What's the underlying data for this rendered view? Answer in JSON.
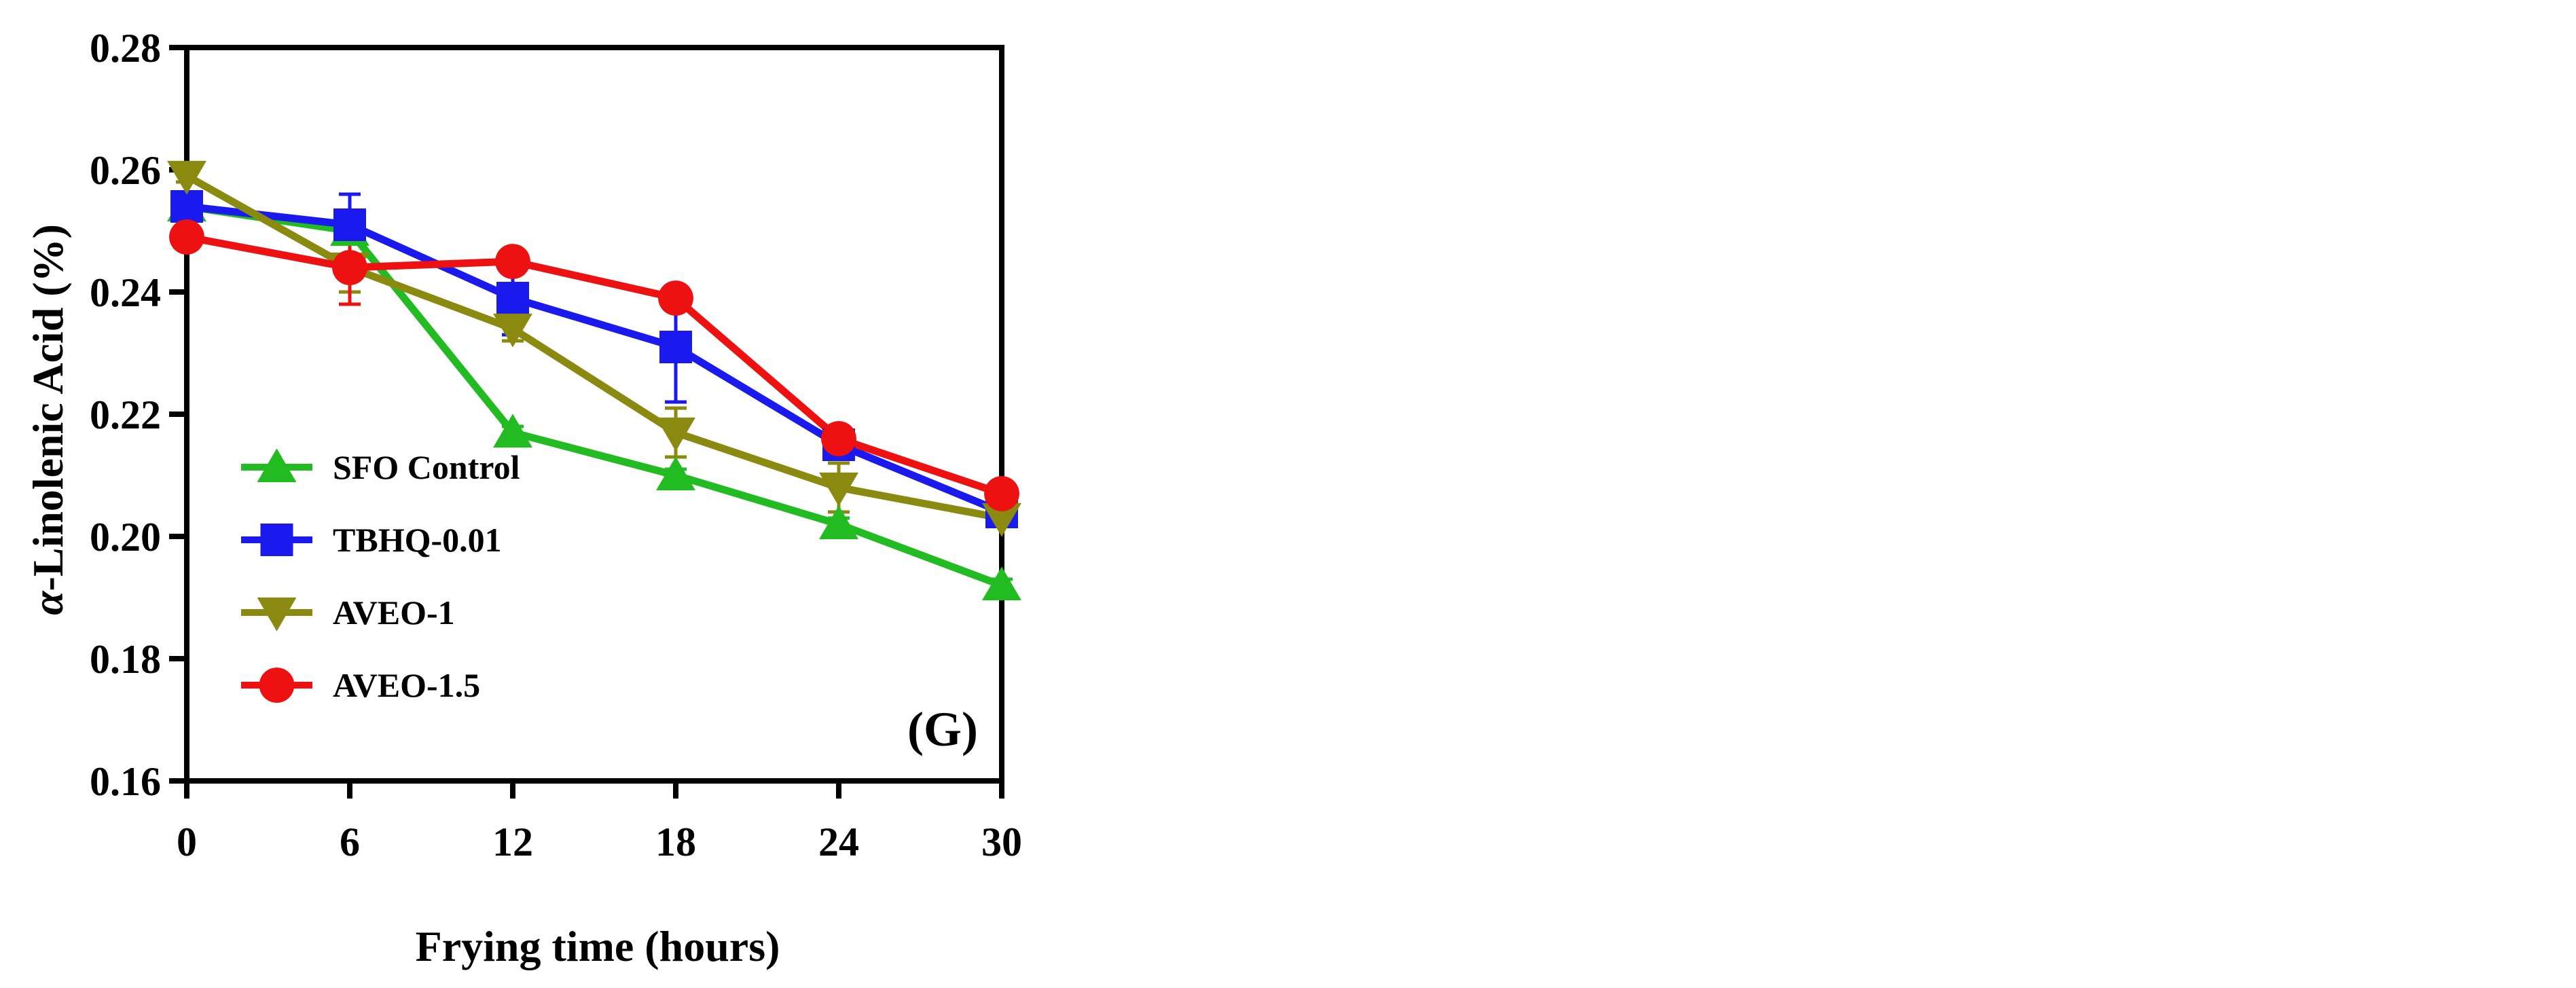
{
  "chart_data": {
    "type": "line",
    "xlabel": "Frying time (hours)",
    "ylabel_symbol": "α",
    "ylabel_rest": "-Linolenic Acid (%)",
    "panel_label": "(G)",
    "x": [
      0,
      6,
      12,
      18,
      24,
      30
    ],
    "x_tick_labels": [
      "0",
      "6",
      "12",
      "18",
      "24",
      "30"
    ],
    "xlim": [
      0,
      30
    ],
    "y_tick_values": [
      0.16,
      0.18,
      0.2,
      0.22,
      0.24,
      0.26,
      0.28
    ],
    "y_tick_labels": [
      "0.16",
      "0.18",
      "0.20",
      "0.22",
      "0.24",
      "0.26",
      "0.28"
    ],
    "ylim": [
      0.16,
      0.28
    ],
    "grid": false,
    "legend_position": "lower-left",
    "series": [
      {
        "name": "SFO Control",
        "color": "#22bb22",
        "marker": "triangle-up",
        "values": [
          0.254,
          0.25,
          0.217,
          0.21,
          0.202,
          0.192
        ],
        "errors": [
          0.001,
          0.001,
          0.001,
          0.001,
          0.001,
          0.001
        ]
      },
      {
        "name": "TBHQ-0.01",
        "color": "#1a1aee",
        "marker": "square",
        "values": [
          0.254,
          0.251,
          0.239,
          0.231,
          0.215,
          0.204
        ],
        "errors": [
          0.001,
          0.005,
          0.006,
          0.009,
          0.002,
          0.001
        ]
      },
      {
        "name": "AVEO-1",
        "color": "#8a8a10",
        "marker": "triangle-down",
        "values": [
          0.259,
          0.244,
          0.234,
          0.217,
          0.208,
          0.203
        ],
        "errors": [
          0.001,
          0.004,
          0.002,
          0.004,
          0.004,
          0.001
        ]
      },
      {
        "name": "AVEO-1.5",
        "color": "#ee1111",
        "marker": "circle",
        "values": [
          0.249,
          0.244,
          0.245,
          0.239,
          0.216,
          0.207
        ],
        "errors": [
          0.001,
          0.006,
          0.001,
          0.002,
          0.001,
          0.001
        ]
      }
    ]
  }
}
